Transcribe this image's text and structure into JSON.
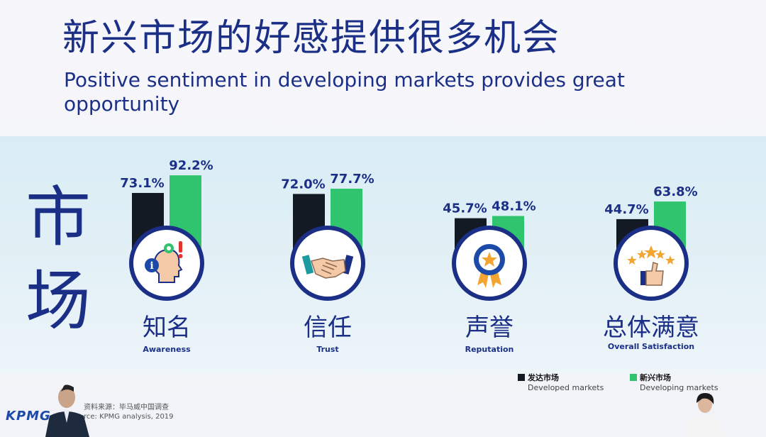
{
  "title_cn": "新兴市场的好感提供很多机会",
  "title_en": "Positive sentiment in developing markets provides great opportunity",
  "side_label": "市场",
  "colors": {
    "developed": "#141a24",
    "developing": "#2fc46d",
    "brand": "#1b2f86"
  },
  "chart_data": {
    "type": "bar",
    "categories": [
      "知名",
      "信任",
      "声誉",
      "总体满意"
    ],
    "categories_en": [
      "Awareness",
      "Trust",
      "Reputation",
      "Overall Satisfaction"
    ],
    "series": [
      {
        "name": "发达市场 Developed markets",
        "values": [
          73.1,
          72.0,
          45.7,
          44.7
        ]
      },
      {
        "name": "新兴市场 Developing markets",
        "values": [
          92.2,
          77.7,
          48.1,
          63.8
        ]
      }
    ],
    "value_labels": [
      [
        "73.1%",
        "72.0%",
        "45.7%",
        "44.7%"
      ],
      [
        "92.2%",
        "77.7%",
        "48.1%",
        "63.8%"
      ]
    ],
    "icons": [
      "head-gear-info-icon",
      "handshake-icon",
      "award-badge-icon",
      "stars-thumbs-up-icon"
    ]
  },
  "legend": [
    {
      "cn": "发达市场",
      "en": "Developed markets"
    },
    {
      "cn": "新兴市场",
      "en": "Developing markets"
    }
  ],
  "footer": {
    "logo": "KPMG",
    "source_cn": "资料来源：毕马威中国调查",
    "source_en": "rce: KPMG analysis, 2019"
  }
}
